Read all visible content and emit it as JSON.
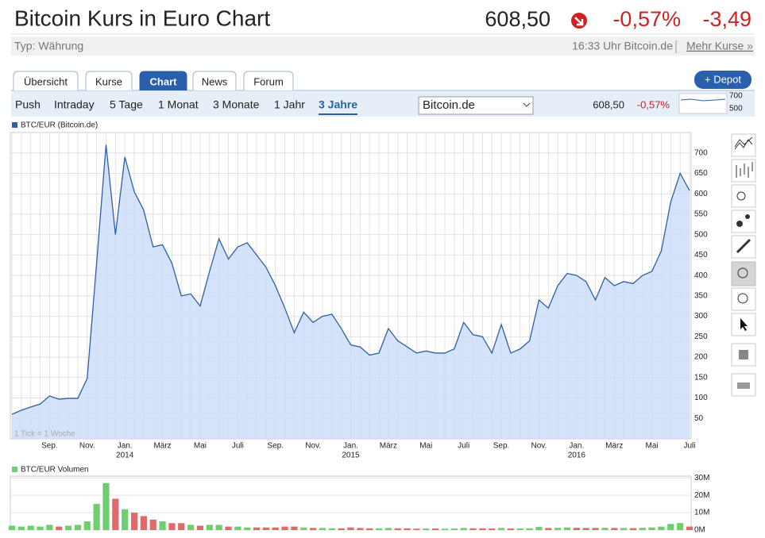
{
  "header": {
    "title": "Bitcoin Kurs in Euro Chart",
    "price": "608,50",
    "change_pct": "-0,57%",
    "change_abs": "-3,49"
  },
  "subheader": {
    "type": "Typ: Währung",
    "source": "16:33 Uhr Bitcoin.de",
    "link": "Mehr Kurse »"
  },
  "tabs": [
    "Übersicht",
    "Kurse",
    "Chart",
    "News",
    "Forum"
  ],
  "active_tab": 2,
  "depot_button": "+ Depot",
  "ranges": [
    "Push",
    "Intraday",
    "5 Tage",
    "1 Monat",
    "3 Monate",
    "1 Jahr",
    "3 Jahre"
  ],
  "active_range": 6,
  "exchange": "Bitcoin.de",
  "quote": {
    "price": "608,50",
    "change": "-0,57%"
  },
  "mini_chart_ticks": [
    "700",
    "500"
  ],
  "chart_data": [
    {
      "type": "area",
      "note": "1 Tick = 1 Woche",
      "categories": [
        null,
        null,
        null,
        null,
        "Sep.",
        null,
        null,
        null,
        "Nov.",
        null,
        null,
        null,
        "Jan.",
        null,
        null,
        null,
        "März",
        null,
        null,
        null,
        "Mai",
        null,
        null,
        null,
        "Juli",
        null,
        null,
        null,
        "Sep.",
        null,
        null,
        null,
        "Nov.",
        null,
        null,
        null,
        "Jan.",
        null,
        null,
        null,
        "März",
        null,
        null,
        null,
        "Mai",
        null,
        null,
        null,
        "Juli",
        null,
        null,
        null,
        "Sep.",
        null,
        null,
        null,
        "Nov.",
        null,
        null,
        null,
        "Jan.",
        null,
        null,
        null,
        "März",
        null,
        null,
        null,
        "Mai",
        null,
        null,
        null,
        "Juli"
      ],
      "year_labels": [
        null,
        null,
        null,
        null,
        null,
        null,
        null,
        null,
        null,
        null,
        null,
        null,
        "2014",
        null,
        null,
        null,
        null,
        null,
        null,
        null,
        null,
        null,
        null,
        null,
        null,
        null,
        null,
        null,
        null,
        null,
        null,
        null,
        null,
        null,
        null,
        null,
        "2015",
        null,
        null,
        null,
        null,
        null,
        null,
        null,
        null,
        null,
        null,
        null,
        null,
        null,
        null,
        null,
        null,
        null,
        null,
        null,
        null,
        null,
        null,
        null,
        "2016",
        null,
        null,
        null,
        null,
        null,
        null,
        null,
        null,
        null,
        null,
        null,
        null
      ],
      "series": [
        {
          "name": "BTC/EUR (Bitcoin.de)",
          "color": "#2e5fa8",
          "fill": "#c9dcf7",
          "values": [
            60,
            70,
            78,
            85,
            105,
            97,
            99,
            99,
            148,
            430,
            720,
            500,
            690,
            605,
            560,
            470,
            475,
            430,
            350,
            355,
            325,
            410,
            490,
            440,
            470,
            480,
            450,
            420,
            375,
            320,
            260,
            310,
            285,
            300,
            305,
            270,
            230,
            225,
            205,
            210,
            270,
            240,
            225,
            210,
            215,
            210,
            210,
            220,
            285,
            255,
            250,
            210,
            280,
            210,
            220,
            240,
            340,
            320,
            375,
            405,
            400,
            385,
            340,
            395,
            375,
            385,
            380,
            400,
            410,
            460,
            580,
            650,
            608
          ]
        }
      ],
      "ylim": [
        0,
        750
      ],
      "yticks": [
        50,
        100,
        150,
        200,
        250,
        300,
        350,
        400,
        450,
        500,
        550,
        600,
        650,
        700
      ],
      "grid": true
    },
    {
      "type": "bar",
      "series": [
        {
          "name": "BTC/EUR Volumen",
          "up_color": "#6fcf6f",
          "down_color": "#e06a6a",
          "values": [
            2500000,
            2000000,
            2500000,
            2000000,
            3000000,
            2000000,
            2500000,
            3000000,
            5000000,
            15000000,
            27000000,
            18000000,
            12000000,
            10000000,
            8000000,
            6000000,
            5000000,
            4000000,
            4000000,
            3000000,
            2500000,
            3000000,
            3000000,
            2000000,
            2000000,
            1500000,
            1500000,
            1500000,
            1500000,
            2000000,
            2000000,
            1500000,
            1200000,
            1200000,
            1000000,
            1000000,
            1500000,
            1200000,
            1000000,
            1000000,
            1200000,
            1000000,
            1000000,
            800000,
            900000,
            900000,
            800000,
            900000,
            1200000,
            1000000,
            1000000,
            900000,
            1200000,
            900000,
            900000,
            1000000,
            1800000,
            1200000,
            1300000,
            1500000,
            1300000,
            1200000,
            1200000,
            1300000,
            1200000,
            1200000,
            1100000,
            1300000,
            1500000,
            2000000,
            3500000,
            4000000,
            2000000
          ]
        }
      ],
      "ylim": [
        0,
        31000000
      ],
      "yticks": [
        {
          "value": 0,
          "label": "0M"
        },
        {
          "value": 10000000,
          "label": "10M"
        },
        {
          "value": 20000000,
          "label": "20M"
        },
        {
          "value": 30000000,
          "label": "30M"
        }
      ],
      "grid": true
    }
  ]
}
